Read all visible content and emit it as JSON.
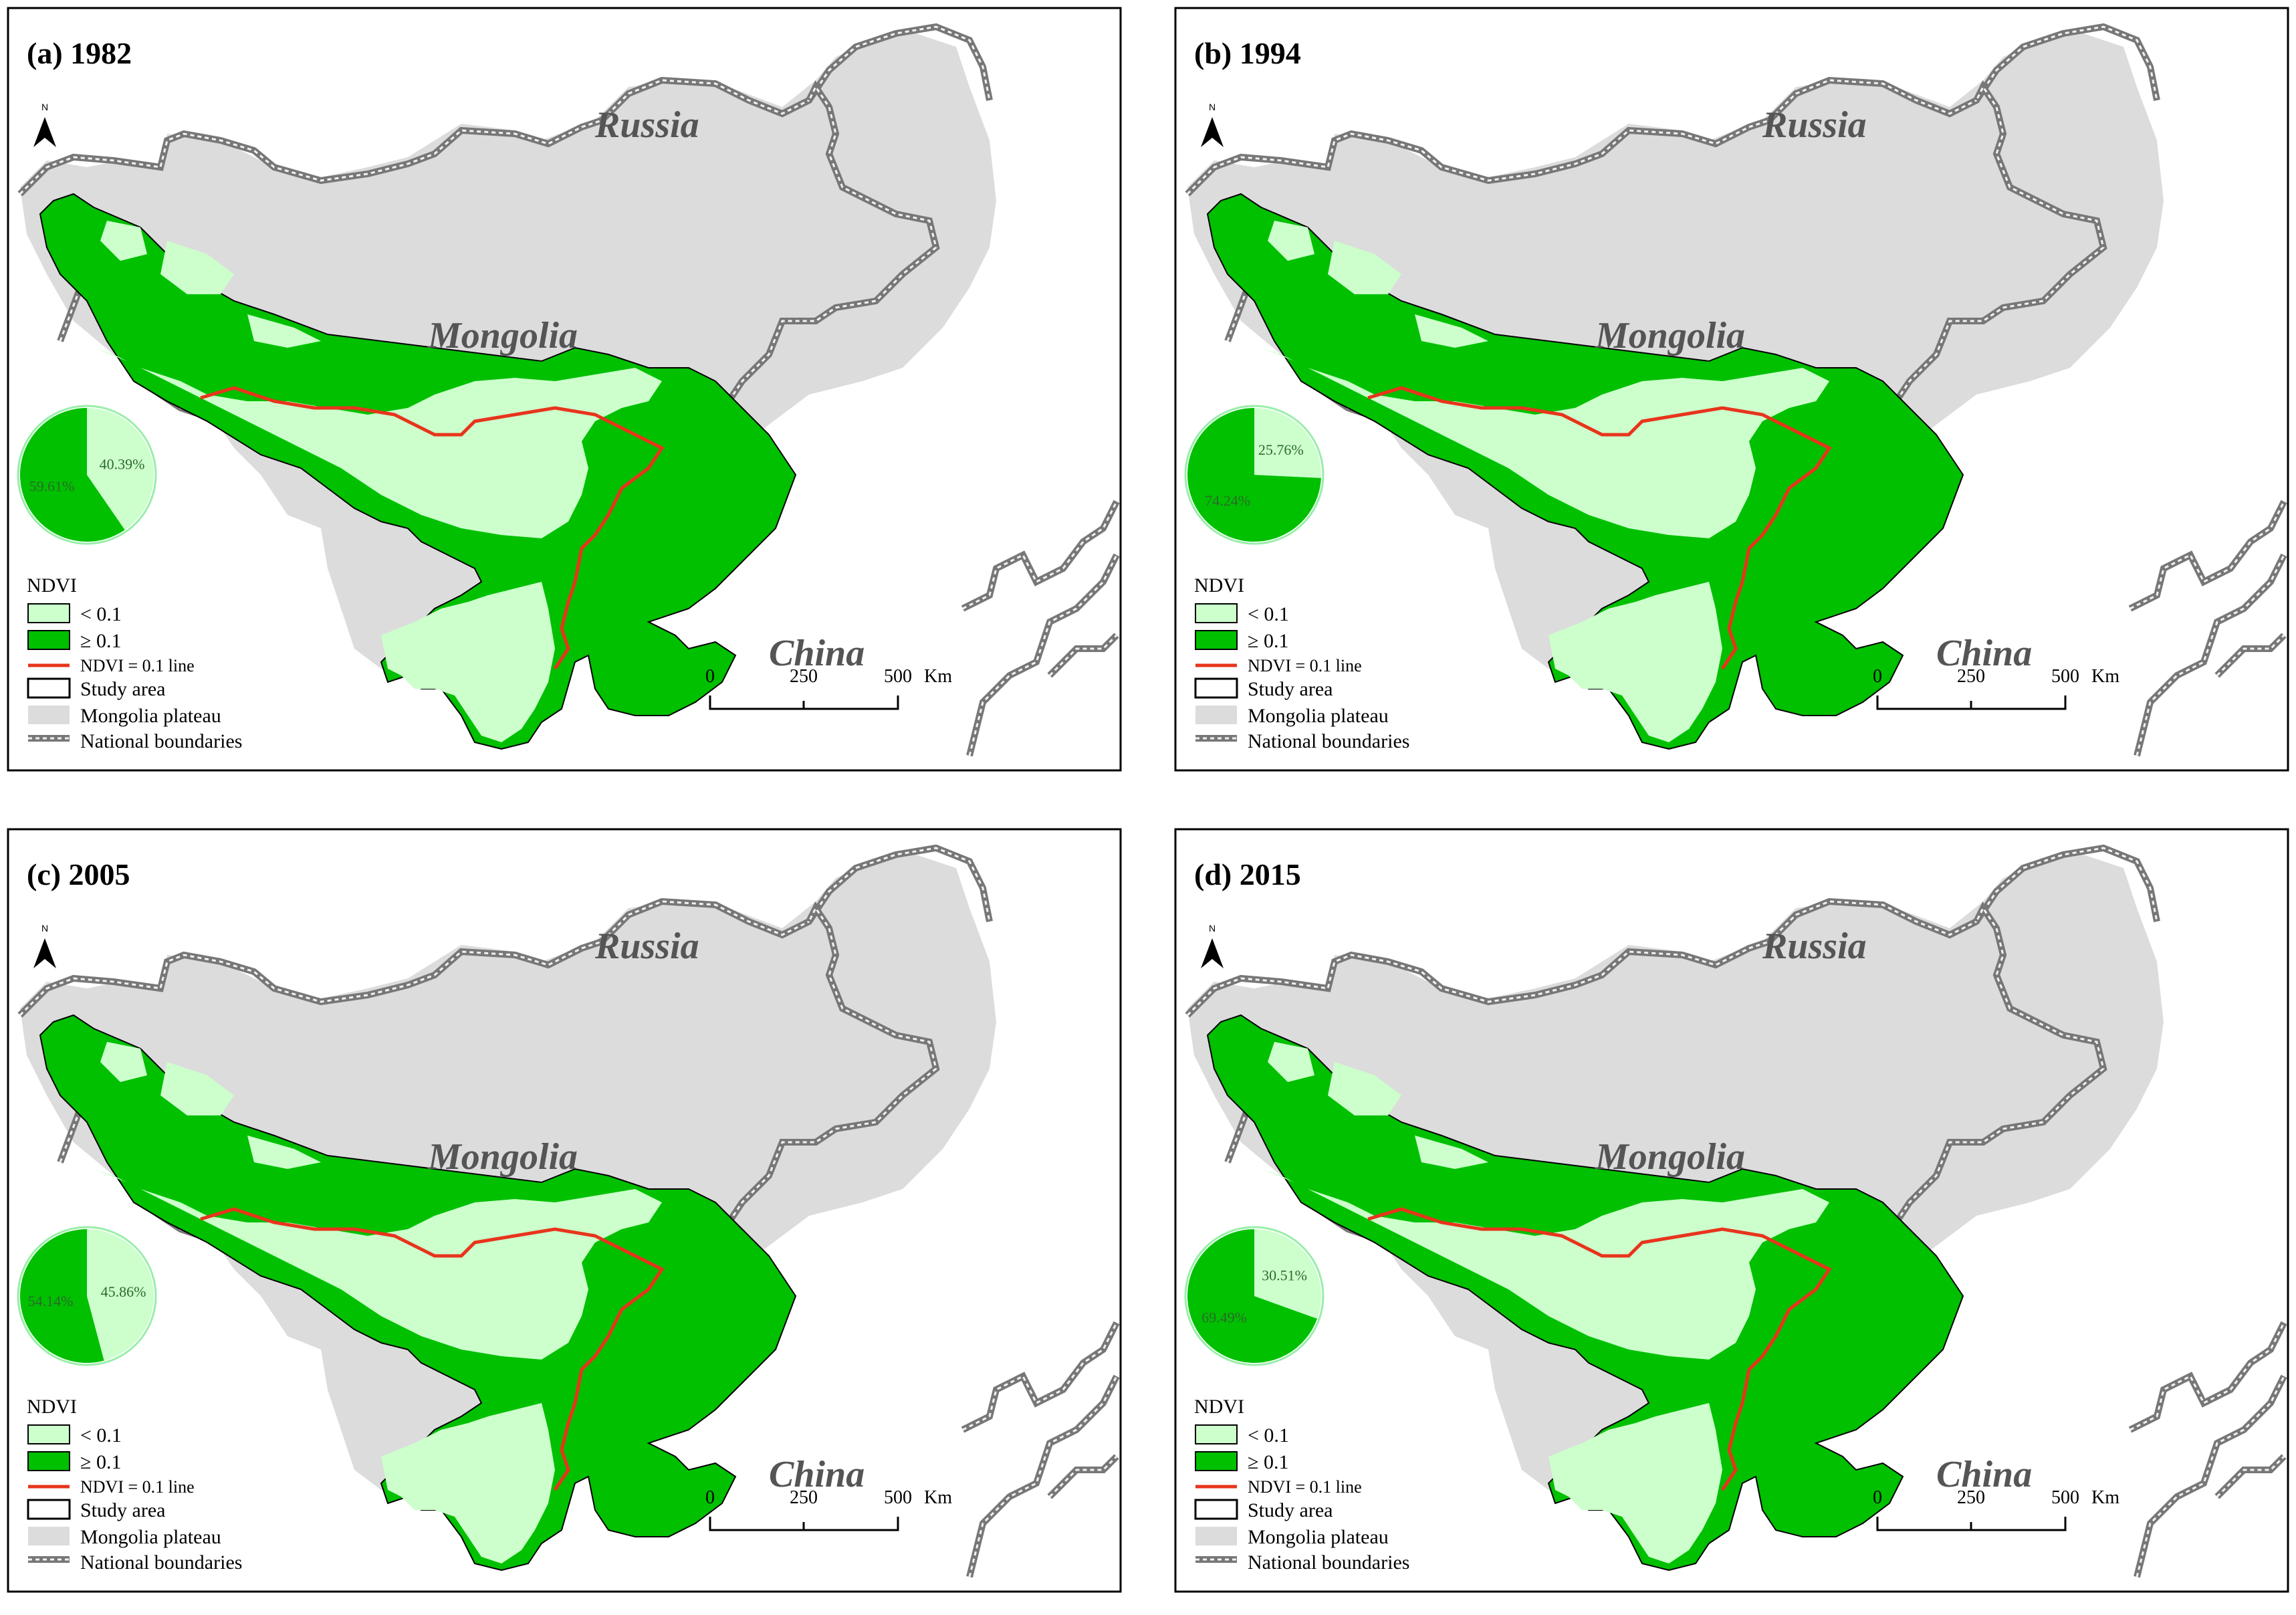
{
  "colors": {
    "low_ndvi": "#ccffcc",
    "high_ndvi": "#00c000",
    "ndvi_line": "#e8341c",
    "plateau": "#dcdcdc",
    "boundary": "#8c8c8c",
    "country_label": "#555555"
  },
  "common": {
    "countries": {
      "russia": "Russia",
      "mongolia": "Mongolia",
      "china": "China"
    },
    "north": "N",
    "legend": {
      "title": "NDVI",
      "low": "< 0.1",
      "high": "≥ 0.1",
      "line": "NDVI = 0.1 line",
      "study": "Study area",
      "plateau": "Mongolia plateau",
      "boundaries": "National boundaries"
    },
    "scale": {
      "t0": "0",
      "t1": "250",
      "t2": "500",
      "unit": "Km"
    }
  },
  "panels": [
    {
      "label": "(a) 1982",
      "pie": {
        "low_pct": 40.39,
        "high_pct": 59.61,
        "low_label": "40.39%",
        "high_label": "59.61%"
      }
    },
    {
      "label": "(b) 1994",
      "pie": {
        "low_pct": 25.76,
        "high_pct": 74.24,
        "low_label": "25.76%",
        "high_label": "74.24%"
      }
    },
    {
      "label": "(c)  2005",
      "pie": {
        "low_pct": 45.86,
        "high_pct": 54.14,
        "low_label": "45.86%",
        "high_label": "54.14%"
      }
    },
    {
      "label": "(d) 2015",
      "pie": {
        "low_pct": 30.51,
        "high_pct": 69.49,
        "low_label": "30.51%",
        "high_label": "69.49%"
      }
    }
  ]
}
